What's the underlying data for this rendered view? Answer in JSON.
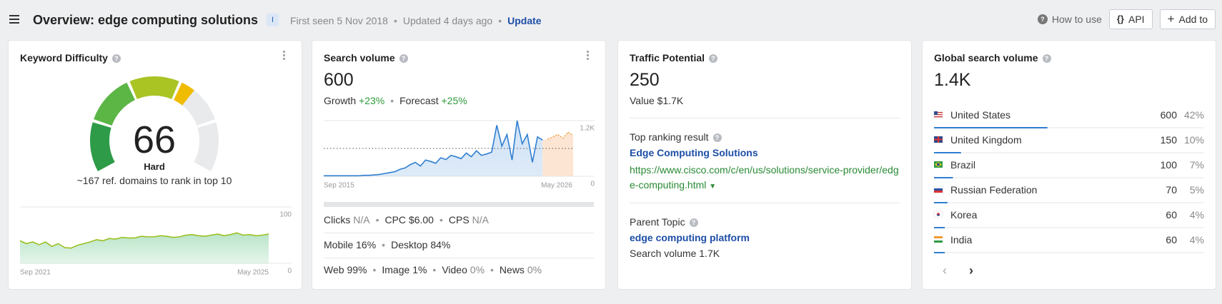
{
  "header": {
    "title": "Overview: edge computing solutions",
    "badge": "I",
    "first_seen": "First seen 5 Nov 2018",
    "updated": "Updated 4 days ago",
    "update": "Update",
    "how_to_use": "How to use",
    "api": "API",
    "add_to": "Add to"
  },
  "keyword_difficulty": {
    "title": "Keyword Difficulty",
    "value": 66,
    "label": "Hard",
    "note": "~167 ref. domains to rank in top 10",
    "chart": {
      "values": [
        40,
        35,
        38,
        33,
        38,
        30,
        35,
        28,
        27,
        32,
        35,
        38,
        42,
        40,
        44,
        43,
        46,
        45,
        45,
        48,
        47,
        47,
        49,
        48,
        46,
        47,
        50,
        51,
        49,
        48,
        50,
        52,
        49,
        51,
        54,
        50,
        51,
        49,
        50,
        52
      ],
      "ylim": [
        0,
        100
      ],
      "yticks": [
        0,
        100
      ],
      "x_labels": [
        "Sep 2021",
        "May 2025"
      ]
    }
  },
  "search_volume": {
    "title": "Search volume",
    "value": "600",
    "growth_label": "Growth",
    "growth": "+23%",
    "forecast_label": "Forecast",
    "forecast": "+25%",
    "chart": {
      "values": [
        10,
        10,
        10,
        10,
        10,
        10,
        10,
        10,
        20,
        20,
        30,
        40,
        60,
        80,
        100,
        150,
        180,
        250,
        300,
        220,
        350,
        320,
        280,
        400,
        360,
        450,
        420,
        380,
        500,
        420,
        550,
        450,
        480,
        520,
        1100,
        650,
        900,
        350,
        1200,
        700,
        900,
        300,
        850,
        780
      ],
      "forecast": [
        800,
        850,
        900,
        820,
        950,
        880
      ],
      "reference_line": 600,
      "ylim": [
        0,
        1200
      ],
      "yticks": [
        0,
        {
          "value": 1200,
          "label": "1.2K"
        }
      ],
      "x_labels": [
        "Sep 2015",
        "May 2026"
      ]
    },
    "metrics": [
      [
        {
          "label": "Clicks",
          "value": "N/A"
        },
        {
          "label": "CPC",
          "value": "$6.00"
        },
        {
          "label": "CPS",
          "value": "N/A"
        }
      ],
      [
        {
          "label": "Mobile",
          "value": "16%"
        },
        {
          "label": "Desktop",
          "value": "84%"
        }
      ],
      [
        {
          "label": "Web",
          "value": "99%"
        },
        {
          "label": "Image",
          "value": "1%"
        },
        {
          "label": "Video",
          "value": "0%"
        },
        {
          "label": "News",
          "value": "0%"
        }
      ]
    ]
  },
  "traffic_potential": {
    "title": "Traffic Potential",
    "value": "250",
    "value_line": "Value $1.7K",
    "top_result_label": "Top ranking result",
    "top_result_title": "Edge Computing Solutions",
    "top_result_url": "https://www.cisco.com/c/en/us/solutions/service-provider/edge-computing.html",
    "parent_topic_label": "Parent Topic",
    "parent_topic": "edge computing platform",
    "parent_topic_volume": "Search volume 1.7K"
  },
  "global_volume": {
    "title": "Global search volume",
    "value": "1.4K",
    "countries": [
      {
        "name": "United States",
        "volume": "600",
        "share": "42%"
      },
      {
        "name": "United Kingdom",
        "volume": "150",
        "share": "10%"
      },
      {
        "name": "Brazil",
        "volume": "100",
        "share": "7%"
      },
      {
        "name": "Russian Federation",
        "volume": "70",
        "share": "5%"
      },
      {
        "name": "Korea",
        "volume": "60",
        "share": "4%"
      },
      {
        "name": "India",
        "volume": "60",
        "share": "4%"
      }
    ]
  }
}
